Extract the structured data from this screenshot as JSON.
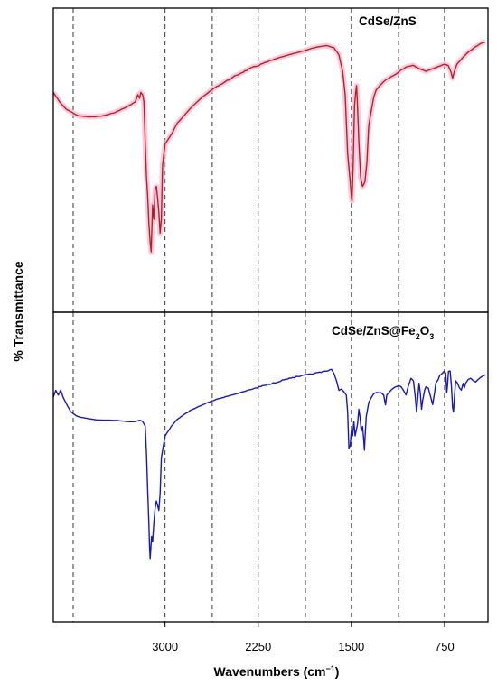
{
  "chart_data": {
    "type": "line",
    "xlabel": "Wavenumbers (cm",
    "xlabel_sup": "−1",
    "xlabel_close": ")",
    "ylabel": "% Transmittance",
    "x_reversed": true,
    "xlim": [
      3900,
      400
    ],
    "x_ticks": [
      3000,
      2250,
      1500,
      750
    ],
    "x_tick_labels": [
      "3000",
      "2250",
      "1500",
      "750"
    ],
    "dashed_gridlines_x": [
      3740,
      3000,
      2620,
      2250,
      1870,
      1500,
      1120,
      750
    ],
    "y_tick_labels_shown": false,
    "panels": [
      {
        "label": "CdSe/ZnS",
        "label_parts": [
          {
            "t": "CdSe/ZnS",
            "sub": false
          }
        ],
        "color": "#b22222",
        "shade_color": "#ffb8d6",
        "ylim": [
          0,
          100
        ],
        "series_points": [
          [
            3900,
            76
          ],
          [
            3850,
            72
          ],
          [
            3800,
            69
          ],
          [
            3700,
            66
          ],
          [
            3600,
            65.5
          ],
          [
            3500,
            66
          ],
          [
            3400,
            67.5
          ],
          [
            3300,
            70
          ],
          [
            3240,
            72
          ],
          [
            3220,
            75
          ],
          [
            3205,
            73.5
          ],
          [
            3195,
            76
          ],
          [
            3180,
            75
          ],
          [
            3170,
            72
          ],
          [
            3160,
            55
          ],
          [
            3150,
            40
          ],
          [
            3140,
            32
          ],
          [
            3130,
            20
          ],
          [
            3120,
            12
          ],
          [
            3112,
            8
          ],
          [
            3100,
            28
          ],
          [
            3090,
            22
          ],
          [
            3080,
            35
          ],
          [
            3070,
            36
          ],
          [
            3060,
            31
          ],
          [
            3050,
            25
          ],
          [
            3040,
            16
          ],
          [
            3030,
            22
          ],
          [
            3020,
            45
          ],
          [
            3000,
            54
          ],
          [
            2950,
            58
          ],
          [
            2900,
            63
          ],
          [
            2800,
            69
          ],
          [
            2700,
            74
          ],
          [
            2600,
            78
          ],
          [
            2500,
            81
          ],
          [
            2400,
            84
          ],
          [
            2300,
            86.5
          ],
          [
            2200,
            88.5
          ],
          [
            2100,
            90.5
          ],
          [
            2000,
            92
          ],
          [
            1900,
            93.5
          ],
          [
            1800,
            95
          ],
          [
            1700,
            96
          ],
          [
            1640,
            95
          ],
          [
            1600,
            92
          ],
          [
            1570,
            85
          ],
          [
            1550,
            75
          ],
          [
            1530,
            50
          ],
          [
            1510,
            38
          ],
          [
            1500,
            32
          ],
          [
            1495,
            30
          ],
          [
            1485,
            46
          ],
          [
            1475,
            70
          ],
          [
            1465,
            76
          ],
          [
            1458,
            79
          ],
          [
            1450,
            70
          ],
          [
            1440,
            55
          ],
          [
            1425,
            40
          ],
          [
            1410,
            36
          ],
          [
            1400,
            37
          ],
          [
            1390,
            38
          ],
          [
            1375,
            46
          ],
          [
            1360,
            62
          ],
          [
            1340,
            68
          ],
          [
            1320,
            74
          ],
          [
            1300,
            77
          ],
          [
            1270,
            79
          ],
          [
            1250,
            80
          ],
          [
            1220,
            81.5
          ],
          [
            1200,
            82
          ],
          [
            1150,
            83.5
          ],
          [
            1100,
            85.5
          ],
          [
            1050,
            87
          ],
          [
            1000,
            87.5
          ],
          [
            950,
            86
          ],
          [
            900,
            85
          ],
          [
            850,
            86
          ],
          [
            800,
            87
          ],
          [
            750,
            88
          ],
          [
            720,
            87.5
          ],
          [
            700,
            85
          ],
          [
            685,
            82
          ],
          [
            670,
            85
          ],
          [
            650,
            88
          ],
          [
            600,
            91
          ],
          [
            550,
            93.5
          ],
          [
            500,
            95.5
          ],
          [
            450,
            97
          ],
          [
            420,
            97.5
          ]
        ],
        "band_features": [
          [
            2550,
            2150
          ],
          [
            1510,
            1390
          ]
        ]
      },
      {
        "label": "CdSe/ZnS@Fe2O3",
        "label_parts": [
          {
            "t": "CdSe/ZnS@Fe",
            "sub": false
          },
          {
            "t": "2",
            "sub": true
          },
          {
            "t": "O",
            "sub": false
          },
          {
            "t": "3",
            "sub": true
          }
        ],
        "color": "#1515d0",
        "ylim": [
          0,
          100
        ],
        "series_points": [
          [
            3900,
            78
          ],
          [
            3880,
            81
          ],
          [
            3860,
            79
          ],
          [
            3840,
            81
          ],
          [
            3820,
            78
          ],
          [
            3800,
            76
          ],
          [
            3760,
            72
          ],
          [
            3700,
            70
          ],
          [
            3600,
            69
          ],
          [
            3500,
            68.5
          ],
          [
            3400,
            68.5
          ],
          [
            3300,
            68
          ],
          [
            3250,
            68
          ],
          [
            3200,
            68.5
          ],
          [
            3180,
            68
          ],
          [
            3160,
            66
          ],
          [
            3150,
            55
          ],
          [
            3140,
            40
          ],
          [
            3130,
            25
          ],
          [
            3125,
            16
          ],
          [
            3120,
            11
          ],
          [
            3115,
            15
          ],
          [
            3108,
            20
          ],
          [
            3100,
            18
          ],
          [
            3090,
            26
          ],
          [
            3080,
            32
          ],
          [
            3070,
            35
          ],
          [
            3060,
            33
          ],
          [
            3050,
            31
          ],
          [
            3040,
            38
          ],
          [
            3030,
            53
          ],
          [
            3000,
            62
          ],
          [
            2950,
            66
          ],
          [
            2900,
            69
          ],
          [
            2800,
            72.5
          ],
          [
            2700,
            75
          ],
          [
            2600,
            77
          ],
          [
            2500,
            78.5
          ],
          [
            2400,
            80
          ],
          [
            2300,
            81.5
          ],
          [
            2200,
            83
          ],
          [
            2100,
            84.5
          ],
          [
            2000,
            86
          ],
          [
            1900,
            87
          ],
          [
            1800,
            88
          ],
          [
            1700,
            89
          ],
          [
            1660,
            89.5
          ],
          [
            1640,
            88
          ],
          [
            1620,
            85
          ],
          [
            1600,
            81
          ],
          [
            1580,
            81.5
          ],
          [
            1560,
            80.5
          ],
          [
            1540,
            79
          ],
          [
            1530,
            72
          ],
          [
            1520,
            57
          ],
          [
            1510,
            58
          ],
          [
            1500,
            64
          ],
          [
            1490,
            62
          ],
          [
            1480,
            68
          ],
          [
            1470,
            62
          ],
          [
            1450,
            67
          ],
          [
            1440,
            73
          ],
          [
            1430,
            70
          ],
          [
            1420,
            64
          ],
          [
            1410,
            66
          ],
          [
            1400,
            60
          ],
          [
            1395,
            56
          ],
          [
            1390,
            61
          ],
          [
            1380,
            70
          ],
          [
            1360,
            76
          ],
          [
            1340,
            78
          ],
          [
            1320,
            79.5
          ],
          [
            1300,
            80
          ],
          [
            1260,
            80
          ],
          [
            1240,
            79
          ],
          [
            1225,
            75
          ],
          [
            1215,
            79
          ],
          [
            1200,
            80
          ],
          [
            1160,
            82
          ],
          [
            1120,
            83
          ],
          [
            1100,
            82.5
          ],
          [
            1080,
            81
          ],
          [
            1060,
            79
          ],
          [
            1040,
            83
          ],
          [
            1020,
            86
          ],
          [
            1000,
            85
          ],
          [
            985,
            78
          ],
          [
            975,
            72
          ],
          [
            965,
            78
          ],
          [
            955,
            84
          ],
          [
            945,
            80
          ],
          [
            935,
            73
          ],
          [
            925,
            77
          ],
          [
            910,
            81
          ],
          [
            900,
            82.5
          ],
          [
            880,
            82
          ],
          [
            860,
            78
          ],
          [
            845,
            75
          ],
          [
            830,
            80
          ],
          [
            820,
            84
          ],
          [
            800,
            85.5
          ],
          [
            790,
            87
          ],
          [
            770,
            88
          ],
          [
            750,
            89
          ],
          [
            740,
            88
          ],
          [
            732,
            80
          ],
          [
            726,
            83
          ],
          [
            718,
            89
          ],
          [
            705,
            89
          ],
          [
            695,
            83
          ],
          [
            685,
            74
          ],
          [
            678,
            72
          ],
          [
            668,
            80
          ],
          [
            660,
            85
          ],
          [
            645,
            84
          ],
          [
            630,
            82
          ],
          [
            615,
            81
          ],
          [
            600,
            84
          ],
          [
            590,
            82
          ],
          [
            580,
            84
          ],
          [
            560,
            85.5
          ],
          [
            540,
            86
          ],
          [
            520,
            85
          ],
          [
            500,
            84.5
          ],
          [
            480,
            85.5
          ],
          [
            460,
            86.5
          ],
          [
            440,
            87
          ],
          [
            420,
            87.5
          ]
        ],
        "band_features": [
          [
            2300,
            1650
          ]
        ]
      }
    ]
  }
}
